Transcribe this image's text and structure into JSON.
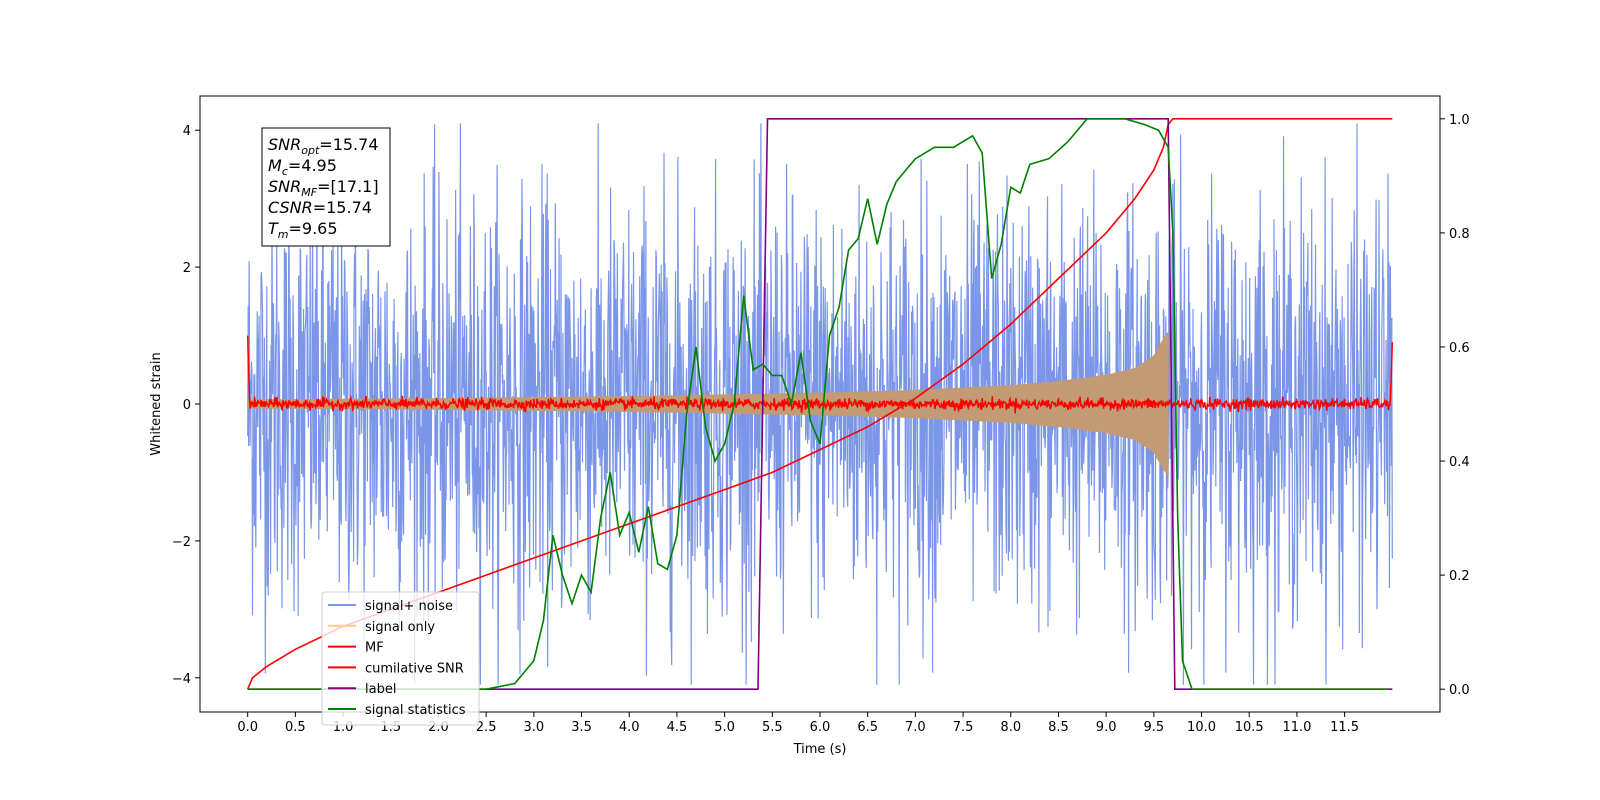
{
  "chart_data": {
    "type": "line",
    "title": "",
    "xlabel": "Time (s)",
    "ylabel": "Whitened strain",
    "y2label": "",
    "xlim": [
      -0.5,
      12.5
    ],
    "ylim": [
      -4.5,
      4.5
    ],
    "y2lim": [
      -0.04,
      1.04
    ],
    "x_ticks": [
      0.0,
      0.5,
      1.0,
      1.5,
      2.0,
      2.5,
      3.0,
      3.5,
      4.0,
      4.5,
      5.0,
      5.5,
      6.0,
      6.5,
      7.0,
      7.5,
      8.0,
      8.5,
      9.0,
      9.5,
      10.0,
      10.5,
      11.0,
      11.5
    ],
    "x_tick_labels": [
      "0.0",
      "0.5",
      "1.0",
      "1.5",
      "2.0",
      "2.5",
      "3.0",
      "3.5",
      "4.0",
      "4.5",
      "5.0",
      "5.5",
      "6.0",
      "6.5",
      "7.0",
      "7.5",
      "8.0",
      "8.5",
      "9.0",
      "9.5",
      "10.0",
      "10.5",
      "11.0",
      "11.5"
    ],
    "y_ticks": [
      -4,
      -2,
      0,
      2,
      4
    ],
    "y_tick_labels": [
      "−4",
      "−2",
      "0",
      "2",
      "4"
    ],
    "y2_ticks": [
      0.0,
      0.2,
      0.4,
      0.6,
      0.8,
      1.0
    ],
    "y2_tick_labels": [
      "0.0",
      "0.2",
      "0.4",
      "0.6",
      "0.8",
      "1.0"
    ],
    "grid": false,
    "legend_position": "lower-left",
    "series": [
      {
        "name": "signal+ noise",
        "color": "#7b96e8",
        "axis": "left",
        "kind": "noise",
        "x_range": [
          0.0,
          12.0
        ],
        "amplitude": 1.5
      },
      {
        "name": "signal only",
        "color": "#c29a74",
        "axis": "left",
        "kind": "chirp",
        "x_range": [
          0.0,
          9.65
        ],
        "envelope_x": [
          0.0,
          2.0,
          4.0,
          6.0,
          7.0,
          8.0,
          8.5,
          9.0,
          9.3,
          9.5,
          9.6,
          9.65
        ],
        "envelope_y": [
          0.06,
          0.08,
          0.11,
          0.16,
          0.2,
          0.27,
          0.33,
          0.42,
          0.52,
          0.7,
          0.95,
          1.05
        ]
      },
      {
        "name": "MF",
        "color": "#ff0000",
        "axis": "left",
        "kind": "mf",
        "x_range": [
          0.0,
          12.0
        ],
        "start_value": 1.0,
        "end_value": 0.9,
        "amplitude": 0.08
      },
      {
        "name": "cumilative SNR",
        "color": "#ff0000",
        "axis": "right",
        "x": [
          0.0,
          0.05,
          0.2,
          0.5,
          1.0,
          1.5,
          2.0,
          2.5,
          3.0,
          3.5,
          4.0,
          4.5,
          5.0,
          5.5,
          6.0,
          6.5,
          7.0,
          7.5,
          8.0,
          8.5,
          9.0,
          9.3,
          9.5,
          9.6,
          9.65,
          9.7,
          12.0
        ],
        "values": [
          0.0,
          0.02,
          0.04,
          0.07,
          0.11,
          0.14,
          0.17,
          0.2,
          0.23,
          0.26,
          0.29,
          0.32,
          0.35,
          0.38,
          0.42,
          0.46,
          0.51,
          0.57,
          0.64,
          0.72,
          0.8,
          0.86,
          0.91,
          0.95,
          0.99,
          1.0,
          1.0
        ]
      },
      {
        "name": "label",
        "color": "#800080",
        "axis": "right",
        "x": [
          0.0,
          5.35,
          5.45,
          9.65,
          9.72,
          12.0
        ],
        "values": [
          0.0,
          0.0,
          1.0,
          1.0,
          0.0,
          0.0
        ]
      },
      {
        "name": "signal statistics",
        "color": "#008000",
        "axis": "right",
        "x": [
          0.0,
          0.5,
          1.0,
          1.5,
          2.0,
          2.5,
          2.8,
          3.0,
          3.1,
          3.2,
          3.3,
          3.4,
          3.5,
          3.6,
          3.7,
          3.8,
          3.9,
          4.0,
          4.1,
          4.2,
          4.3,
          4.4,
          4.5,
          4.6,
          4.7,
          4.8,
          4.9,
          5.0,
          5.1,
          5.2,
          5.3,
          5.4,
          5.5,
          5.6,
          5.7,
          5.8,
          5.9,
          6.0,
          6.1,
          6.2,
          6.3,
          6.4,
          6.5,
          6.6,
          6.7,
          6.8,
          6.9,
          7.0,
          7.2,
          7.4,
          7.6,
          7.7,
          7.8,
          7.9,
          8.0,
          8.1,
          8.2,
          8.4,
          8.6,
          8.8,
          9.0,
          9.2,
          9.4,
          9.55,
          9.65,
          9.7,
          9.75,
          9.8,
          9.9,
          10.0,
          11.0,
          11.95
        ],
        "values": [
          0.0,
          0.0,
          0.0,
          0.0,
          0.0,
          0.0,
          0.01,
          0.05,
          0.12,
          0.27,
          0.2,
          0.15,
          0.2,
          0.17,
          0.3,
          0.38,
          0.27,
          0.31,
          0.24,
          0.32,
          0.22,
          0.21,
          0.27,
          0.48,
          0.6,
          0.46,
          0.4,
          0.43,
          0.5,
          0.69,
          0.56,
          0.57,
          0.55,
          0.55,
          0.5,
          0.59,
          0.47,
          0.43,
          0.62,
          0.67,
          0.77,
          0.79,
          0.86,
          0.78,
          0.85,
          0.89,
          0.91,
          0.93,
          0.95,
          0.95,
          0.97,
          0.94,
          0.72,
          0.78,
          0.88,
          0.87,
          0.92,
          0.93,
          0.96,
          1.0,
          1.0,
          1.0,
          0.99,
          0.98,
          0.95,
          0.8,
          0.3,
          0.05,
          0.0,
          0.0,
          0.0,
          0.0
        ]
      }
    ],
    "annotation": {
      "lines": [
        {
          "base": "SNR",
          "sub": "opt",
          "rest": "=15.74"
        },
        {
          "base": "M",
          "sub": "c",
          "rest": "=4.95"
        },
        {
          "base": "SNR",
          "sub": "MF",
          "rest": "=[17.1]"
        },
        {
          "base": "CSNR",
          "sub": "",
          "rest": "=15.74"
        },
        {
          "base": "T",
          "sub": "m",
          "rest": "=9.65"
        }
      ]
    }
  }
}
